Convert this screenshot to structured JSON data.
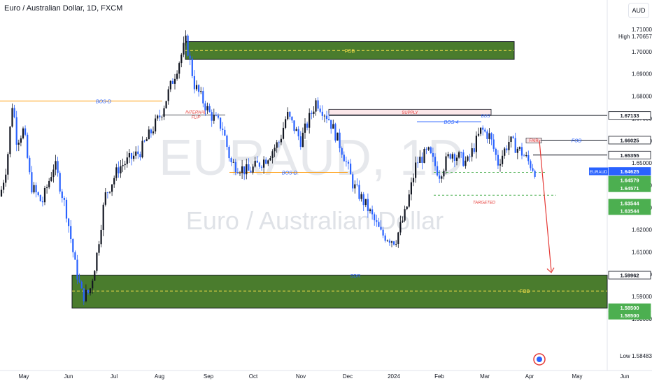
{
  "header": {
    "title": "Euro / Australian Dollar, 1D, FXCM",
    "currency_button": "AUD"
  },
  "watermark": {
    "symbol": "EURAUD, 1D",
    "name": "Euro / Australian Dollar"
  },
  "price_axis": {
    "ticks": [
      "1.71000",
      "1.70000",
      "1.69000",
      "1.68000",
      "1.67000",
      "1.66000",
      "1.65000",
      "1.64000",
      "1.63000",
      "1.62000",
      "1.61000",
      "1.60000",
      "1.59000",
      "1.58000"
    ],
    "high_label": "High",
    "high_value": "1.70657",
    "low_label": "Low",
    "low_value": "1.58483",
    "badges": [
      {
        "text": "1.67133",
        "price": 1.67133,
        "bg": "#ffffff",
        "fg": "#131722",
        "border": "#131722"
      },
      {
        "text": "1.66025",
        "price": 1.66025,
        "bg": "#ffffff",
        "fg": "#131722",
        "border": "#131722"
      },
      {
        "text": "1.65355",
        "price": 1.65355,
        "bg": "#ffffff",
        "fg": "#131722",
        "border": "#131722"
      },
      {
        "text": "1.64625",
        "price": 1.64625,
        "bg": "#2962ff",
        "fg": "#ffffff",
        "border": "#2962ff",
        "label": "EURAUD"
      },
      {
        "text": "1.64579",
        "price": 1.64579,
        "bg": "#4caf50",
        "fg": "#ffffff",
        "border": "#4caf50"
      },
      {
        "text": "1.64571",
        "price": 1.64571,
        "bg": "#4caf50",
        "fg": "#ffffff",
        "border": "#4caf50"
      },
      {
        "text": "1.63544",
        "price": 1.63544,
        "bg": "#4caf50",
        "fg": "#ffffff",
        "border": "#4caf50"
      },
      {
        "text": "1.63544",
        "price": 1.63544,
        "bg": "#4caf50",
        "fg": "#ffffff",
        "border": "#4caf50"
      },
      {
        "text": "1.59962",
        "price": 1.59962,
        "bg": "#ffffff",
        "fg": "#131722",
        "border": "#131722"
      },
      {
        "text": "1.58500",
        "price": 1.585,
        "bg": "#4caf50",
        "fg": "#ffffff",
        "border": "#4caf50"
      },
      {
        "text": "1.58500",
        "price": 1.585,
        "bg": "#4caf50",
        "fg": "#ffffff",
        "border": "#4caf50"
      }
    ]
  },
  "time_axis": {
    "labels": [
      "May",
      "Jun",
      "Jul",
      "Aug",
      "Sep",
      "Oct",
      "Nov",
      "Dec",
      "2024",
      "Feb",
      "Mar",
      "Apr",
      "May",
      "Jun"
    ]
  },
  "annotations": {
    "fob_top": "FOB",
    "fob_bottom": "FOB",
    "fob_right": "FOB",
    "sdr": "SDR",
    "supply": "SUPPLY",
    "bos_d_left": "BOS-D",
    "bos_d_mid": "BOS-D",
    "bos_4": "BOS-4",
    "bos_small": "BOS",
    "internal_flip_1": "INTERNAL",
    "internal_flip_2": "FLIP",
    "targeted": "TARGETED",
    "fair": "FAIR"
  },
  "colors": {
    "bull": "#131722",
    "bear": "#2962ff",
    "zone": "#4a7c2d",
    "target_arrow": "#e53935"
  },
  "chart_data": {
    "type": "candlestick",
    "title": "Euro / Australian Dollar, 1D, FXCM",
    "x_labels": [
      "May",
      "Jun",
      "Jul",
      "Aug",
      "Sep",
      "Oct",
      "Nov",
      "Dec",
      "2024",
      "Feb",
      "Mar",
      "Apr",
      "May",
      "Jun"
    ],
    "ylim": [
      1.5835,
      1.7145
    ],
    "key_closes": [
      {
        "approx_date": "May",
        "price": 1.635
      },
      {
        "approx_date": "late May",
        "price": 1.665
      },
      {
        "approx_date": "mid Jun",
        "price": 1.588
      },
      {
        "approx_date": "Jul",
        "price": 1.64
      },
      {
        "approx_date": "late Aug",
        "price": 1.7066
      },
      {
        "approx_date": "Sep",
        "price": 1.672
      },
      {
        "approx_date": "Oct",
        "price": 1.647
      },
      {
        "approx_date": "Nov",
        "price": 1.681
      },
      {
        "approx_date": "Dec",
        "price": 1.63
      },
      {
        "approx_date": "2024",
        "price": 1.615
      },
      {
        "approx_date": "Feb",
        "price": 1.65
      },
      {
        "approx_date": "Mar",
        "price": 1.668
      },
      {
        "approx_date": "Apr",
        "price": 1.646
      }
    ]
  }
}
